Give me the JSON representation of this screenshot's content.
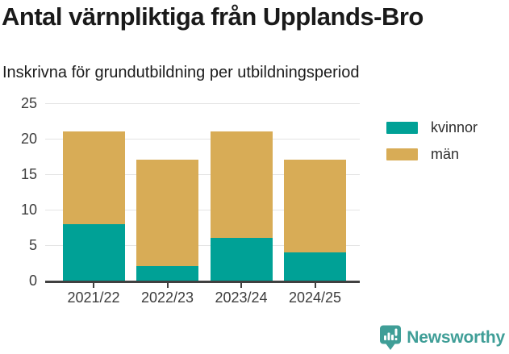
{
  "header": {
    "title": "Antal värnpliktiga från Upplands-Bro",
    "subtitle": "Inskrivna för grundutbildning per utbildningsperiod"
  },
  "chart_data": {
    "type": "bar",
    "stacked": true,
    "title": "Antal värnpliktiga från Upplands-Bro",
    "subtitle": "Inskrivna för grundutbildning per utbildningsperiod",
    "categories": [
      "2021/22",
      "2022/23",
      "2023/24",
      "2024/25"
    ],
    "series": [
      {
        "name": "kvinnor",
        "color": "#00A196",
        "values": [
          8,
          2,
          6,
          4
        ]
      },
      {
        "name": "män",
        "color": "#D8AC56",
        "values": [
          13,
          15,
          15,
          13
        ]
      }
    ],
    "totals": [
      21,
      17,
      21,
      17
    ],
    "xlabel": "",
    "ylabel": "",
    "ylim": [
      0,
      25
    ],
    "yticks": [
      0,
      5,
      10,
      15,
      20,
      25
    ],
    "grid": true,
    "legend_position": "right"
  },
  "legend": {
    "items": [
      {
        "label": "kvinnor",
        "color": "#00A196"
      },
      {
        "label": "män",
        "color": "#D8AC56"
      }
    ]
  },
  "branding": {
    "text": "Newsworthy",
    "color": "#3F9E97"
  },
  "colors": {
    "grid": "#E4E4E4",
    "axis": "#404040",
    "title_text": "#1A1A1A",
    "tick_label": "#3C3C3C"
  }
}
